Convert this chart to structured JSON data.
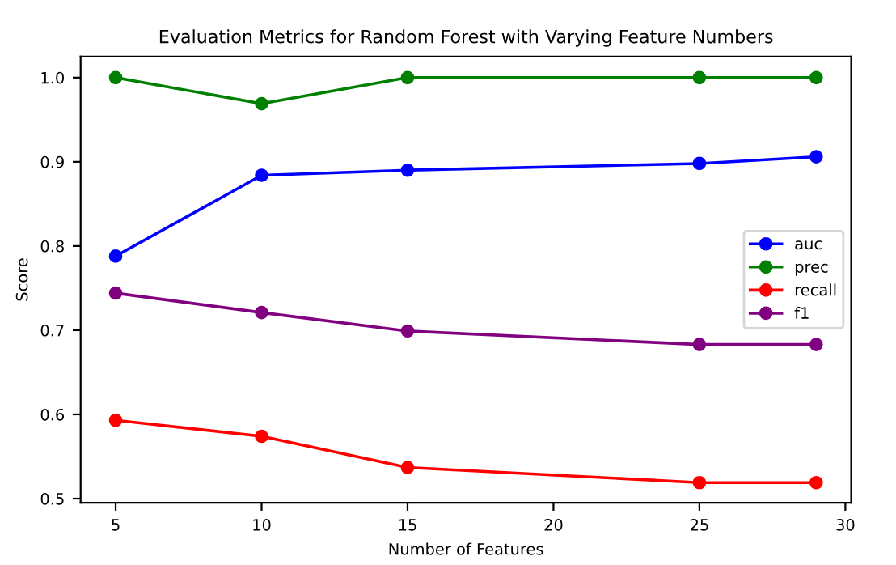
{
  "chart_data": {
    "type": "line",
    "title": "Evaluation Metrics for Random Forest with Varying Feature Numbers",
    "xlabel": "Number of Features",
    "ylabel": "Score",
    "x": [
      5,
      10,
      15,
      25,
      29
    ],
    "series": [
      {
        "name": "auc",
        "color": "#0000ff",
        "values": [
          0.788,
          0.884,
          0.89,
          0.898,
          0.906
        ]
      },
      {
        "name": "prec",
        "color": "#008000",
        "values": [
          1.0,
          0.969,
          1.0,
          1.0,
          1.0
        ]
      },
      {
        "name": "recall",
        "color": "#ff0000",
        "values": [
          0.593,
          0.574,
          0.537,
          0.519,
          0.519
        ]
      },
      {
        "name": "f1",
        "color": "#800080",
        "values": [
          0.744,
          0.721,
          0.699,
          0.683,
          0.683
        ]
      }
    ],
    "xlim": [
      3.8,
      30.2
    ],
    "xticks": [
      5,
      10,
      15,
      20,
      25,
      30
    ],
    "ylim": [
      0.495,
      1.025
    ],
    "yticks": [
      {
        "value": 0.5,
        "label": "0.5"
      },
      {
        "value": 0.6,
        "label": "0.6"
      },
      {
        "value": 0.7,
        "label": "0.7"
      },
      {
        "value": 0.8,
        "label": "0.8"
      },
      {
        "value": 0.9,
        "label": "0.9"
      },
      {
        "value": 1.0,
        "label": "1.0"
      }
    ],
    "marker": "circle",
    "line_style": "solid",
    "legend": "center right",
    "grid": false
  }
}
